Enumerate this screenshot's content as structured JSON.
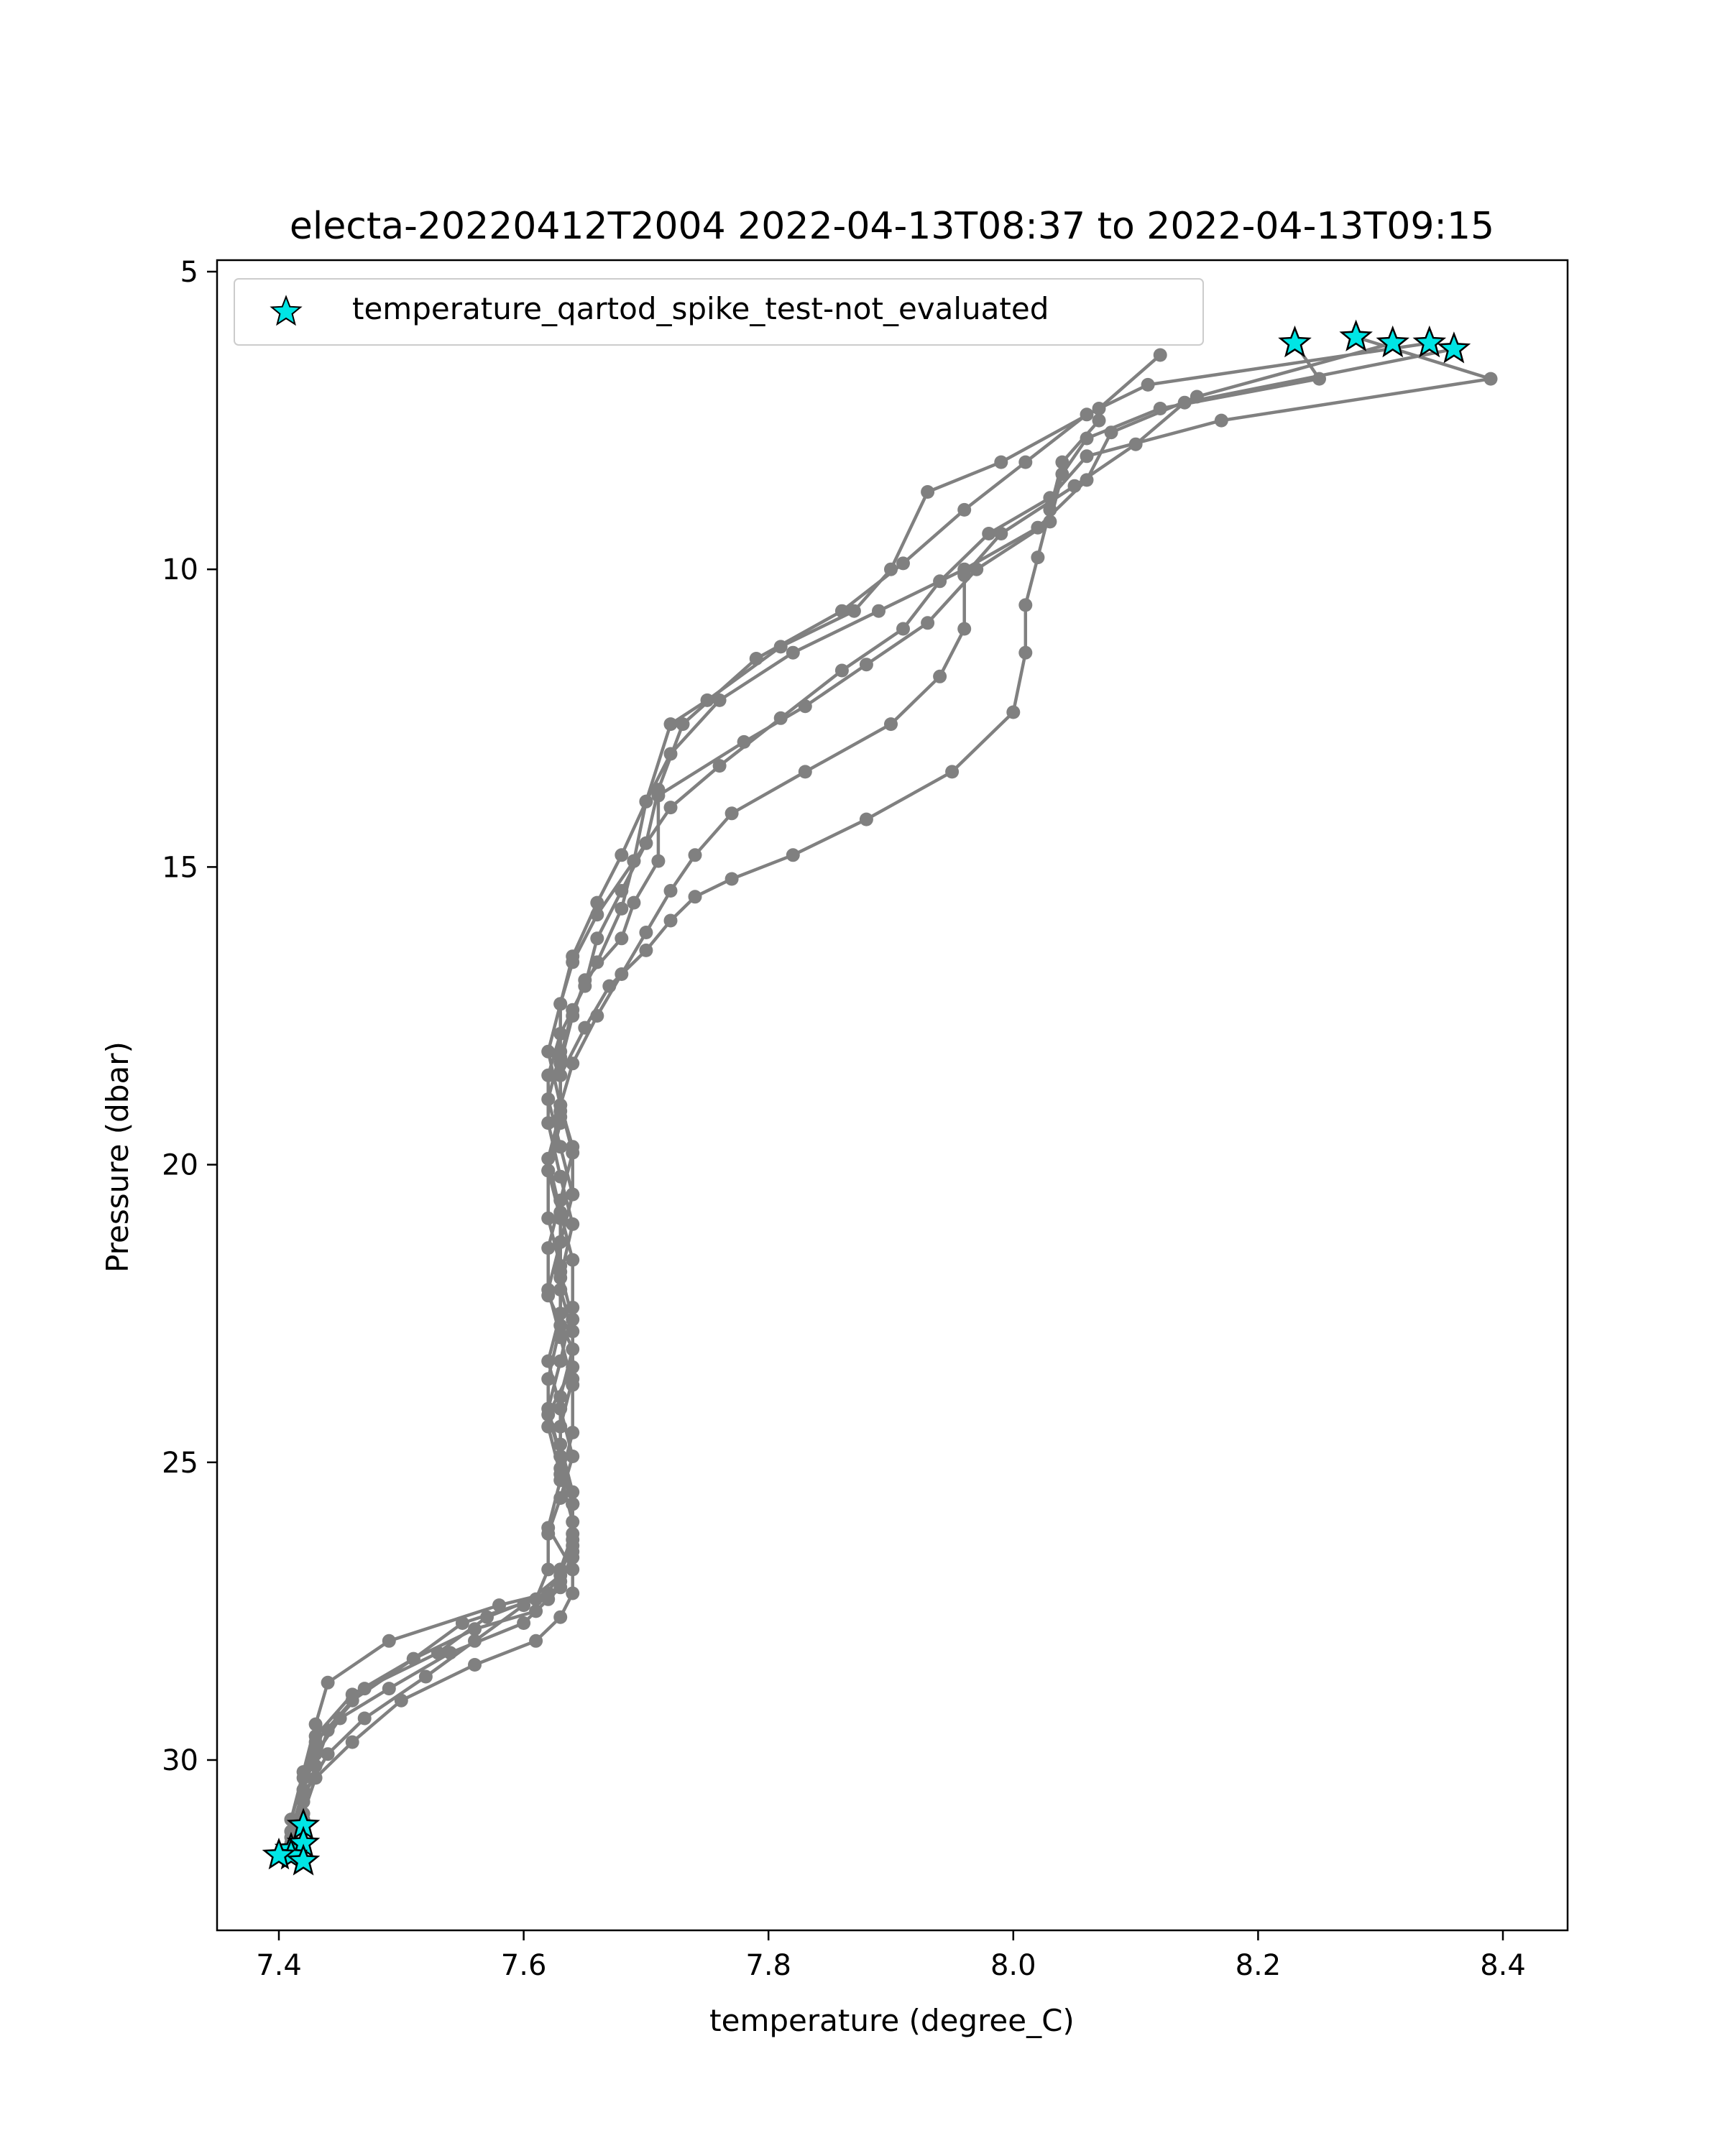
{
  "chart_data": {
    "type": "line",
    "title": "electa-20220412T2004 2022-04-13T08:37 to 2022-04-13T09:15",
    "xlabel": "temperature (degree_C)",
    "ylabel": "Pressure (dbar)",
    "xlim": [
      7.35,
      8.45
    ],
    "ylim": [
      33.0,
      4.9
    ],
    "y_inverted": true,
    "xticks": [
      7.4,
      7.6,
      7.8,
      8.0,
      8.2,
      8.4
    ],
    "xtick_labels": [
      "7.4",
      "7.6",
      "7.8",
      "8.0",
      "8.2",
      "8.4"
    ],
    "yticks": [
      5,
      10,
      15,
      20,
      25,
      30
    ],
    "ytick_labels": [
      "5",
      "10",
      "15",
      "20",
      "25",
      "30"
    ],
    "grid": false,
    "legend": {
      "placement": "top-left",
      "entries": [
        {
          "label": "temperature_qartod_spike_test-not_evaluated",
          "marker": "star",
          "color": "#00e5e5"
        }
      ]
    },
    "series_color": "#808080",
    "flag_color": "#00e5e5",
    "series": [
      {
        "x": [
          8.23,
          8.25,
          8.12,
          8.06,
          8.04,
          8.03,
          7.97,
          7.93,
          7.88,
          7.83,
          7.78,
          7.71,
          7.71,
          7.69,
          7.68,
          7.65,
          7.64,
          7.63,
          7.63,
          7.62,
          7.63,
          7.63,
          7.64,
          7.64,
          7.62,
          7.63,
          7.64,
          7.64,
          7.63,
          7.62,
          7.58,
          7.49,
          7.44,
          7.43,
          7.42,
          7.41,
          7.41
        ],
        "y": [
          6.2,
          6.8,
          7.3,
          7.8,
          8.4,
          9.2,
          10.0,
          10.9,
          11.6,
          12.3,
          12.9,
          13.8,
          14.9,
          15.6,
          16.2,
          16.9,
          17.5,
          18.3,
          19.2,
          20.1,
          20.9,
          21.8,
          22.6,
          23.4,
          24.2,
          24.9,
          25.7,
          26.4,
          26.8,
          27.2,
          27.4,
          28.0,
          28.7,
          29.4,
          30.2,
          31.0,
          31.6
        ]
      },
      {
        "x": [
          8.28,
          8.39,
          8.17,
          8.06,
          8.03,
          7.98,
          7.94,
          7.91,
          7.86,
          7.81,
          7.76,
          7.72,
          7.69,
          7.68,
          7.66,
          7.64,
          7.63,
          7.63,
          7.62,
          7.63,
          7.64,
          7.64,
          7.63,
          7.62,
          7.63,
          7.64,
          7.64,
          7.63,
          7.61,
          7.56,
          7.51,
          7.46,
          7.43,
          7.42,
          7.41,
          7.42
        ],
        "y": [
          6.1,
          6.8,
          7.5,
          8.1,
          8.8,
          9.4,
          10.2,
          11.0,
          11.7,
          12.5,
          13.3,
          14.0,
          14.9,
          15.7,
          16.6,
          17.4,
          18.2,
          19.1,
          19.9,
          20.8,
          21.6,
          22.4,
          23.3,
          24.1,
          24.9,
          25.7,
          26.5,
          27.1,
          27.5,
          27.8,
          28.3,
          28.9,
          29.6,
          30.3,
          31.0,
          31.7
        ]
      },
      {
        "x": [
          8.31,
          8.15,
          8.08,
          8.06,
          8.02,
          7.96,
          7.89,
          7.82,
          7.76,
          7.72,
          7.7,
          7.68,
          7.66,
          7.64,
          7.63,
          7.62,
          7.63,
          7.64,
          7.63,
          7.62,
          7.62,
          7.64,
          7.63,
          7.63,
          7.64,
          7.64,
          7.63,
          7.62,
          7.57,
          7.53,
          7.47,
          7.44,
          7.43,
          7.42,
          7.41,
          7.41
        ],
        "y": [
          6.2,
          7.1,
          7.7,
          8.5,
          9.3,
          10.0,
          10.7,
          11.4,
          12.2,
          13.1,
          13.9,
          14.8,
          15.6,
          16.5,
          17.3,
          18.1,
          19.0,
          19.8,
          20.6,
          21.4,
          22.2,
          23.1,
          23.9,
          24.7,
          25.5,
          26.2,
          26.8,
          27.2,
          27.6,
          28.2,
          28.8,
          29.5,
          30.1,
          30.7,
          31.2,
          31.5
        ]
      },
      {
        "x": [
          8.34,
          8.11,
          8.06,
          8.01,
          7.96,
          7.91,
          7.86,
          7.79,
          7.73,
          7.71,
          7.7,
          7.68,
          7.66,
          7.65,
          7.63,
          7.62,
          7.62,
          7.63,
          7.64,
          7.63,
          7.63,
          7.62,
          7.62,
          7.63,
          7.64,
          7.64,
          7.63,
          7.62,
          7.6,
          7.54,
          7.49,
          7.45,
          7.43,
          7.42,
          7.42,
          7.42
        ],
        "y": [
          6.2,
          6.9,
          7.4,
          8.2,
          9.0,
          9.9,
          10.7,
          11.5,
          12.6,
          13.7,
          14.6,
          15.4,
          16.2,
          17.0,
          17.8,
          18.5,
          19.3,
          20.2,
          21.0,
          21.9,
          22.7,
          23.6,
          24.4,
          25.2,
          26.0,
          26.6,
          27.0,
          27.3,
          27.7,
          28.2,
          28.8,
          29.3,
          29.9,
          30.5,
          31.0,
          31.1
        ]
      },
      {
        "x": [
          8.36,
          8.14,
          8.1,
          8.05,
          7.99,
          7.96,
          7.96,
          7.94,
          7.9,
          7.83,
          7.77,
          7.74,
          7.72,
          7.7,
          7.68,
          7.66,
          7.64,
          7.63,
          7.64,
          7.64,
          7.63,
          7.63,
          7.64,
          7.64,
          7.63,
          7.63,
          7.64,
          7.64,
          7.63,
          7.6,
          7.56,
          7.52,
          7.47,
          7.44,
          7.42,
          7.41
        ],
        "y": [
          6.3,
          7.2,
          7.9,
          8.6,
          9.4,
          10.1,
          11.0,
          11.8,
          12.6,
          13.4,
          14.1,
          14.8,
          15.4,
          16.1,
          16.8,
          17.5,
          18.3,
          19.0,
          19.7,
          20.5,
          21.3,
          22.1,
          22.8,
          23.6,
          24.4,
          25.1,
          25.7,
          26.3,
          26.9,
          27.4,
          28.0,
          28.6,
          29.3,
          29.9,
          30.6,
          31.3
        ]
      },
      {
        "x": [
          8.12,
          8.07,
          7.99,
          7.93,
          7.9,
          7.87,
          7.81,
          7.75,
          7.72,
          7.7,
          7.69,
          7.66,
          7.64,
          7.63,
          7.63,
          7.62,
          7.63,
          7.64,
          7.63,
          7.62,
          7.63,
          7.64,
          7.64,
          7.63,
          7.62,
          7.64,
          7.64,
          7.63,
          7.61,
          7.56,
          7.5,
          7.46,
          7.43,
          7.42,
          7.41
        ],
        "y": [
          6.4,
          7.3,
          8.2,
          8.7,
          10.0,
          10.7,
          11.3,
          12.2,
          12.6,
          13.9,
          14.9,
          15.8,
          16.6,
          17.3,
          18.1,
          18.9,
          19.7,
          20.5,
          21.3,
          22.1,
          22.9,
          23.7,
          24.5,
          25.3,
          26.1,
          26.8,
          27.2,
          27.6,
          28.0,
          28.4,
          29.0,
          29.7,
          30.3,
          30.9,
          31.4
        ]
      },
      {
        "x": [
          8.07,
          8.04,
          8.03,
          8.02,
          8.01,
          8.01,
          8.0,
          7.95,
          7.88,
          7.82,
          7.77,
          7.74,
          7.72,
          7.7,
          7.67,
          7.65,
          7.63,
          7.63,
          7.62,
          7.62,
          7.63,
          7.63,
          7.62,
          7.63,
          7.64,
          7.63,
          7.62,
          7.62,
          7.61,
          7.55,
          7.51,
          7.46,
          7.43,
          7.42,
          7.41
        ],
        "y": [
          7.5,
          8.2,
          9.0,
          9.8,
          10.6,
          11.4,
          12.4,
          13.4,
          14.2,
          14.8,
          15.2,
          15.5,
          15.9,
          16.4,
          17.0,
          17.7,
          18.5,
          19.3,
          20.1,
          20.9,
          21.7,
          22.5,
          23.3,
          24.1,
          24.9,
          25.6,
          26.2,
          26.8,
          27.3,
          27.7,
          28.3,
          29.0,
          29.7,
          30.5,
          31.2
        ]
      }
    ],
    "flagged_points": {
      "label": "temperature_qartod_spike_test-not_evaluated",
      "x": [
        8.23,
        8.28,
        8.31,
        8.34,
        8.36,
        7.42,
        7.41,
        7.42,
        7.41,
        7.42,
        7.4
      ],
      "y": [
        6.2,
        6.1,
        6.2,
        6.2,
        6.3,
        31.1,
        31.5,
        31.4,
        31.6,
        31.7,
        31.6
      ]
    }
  }
}
